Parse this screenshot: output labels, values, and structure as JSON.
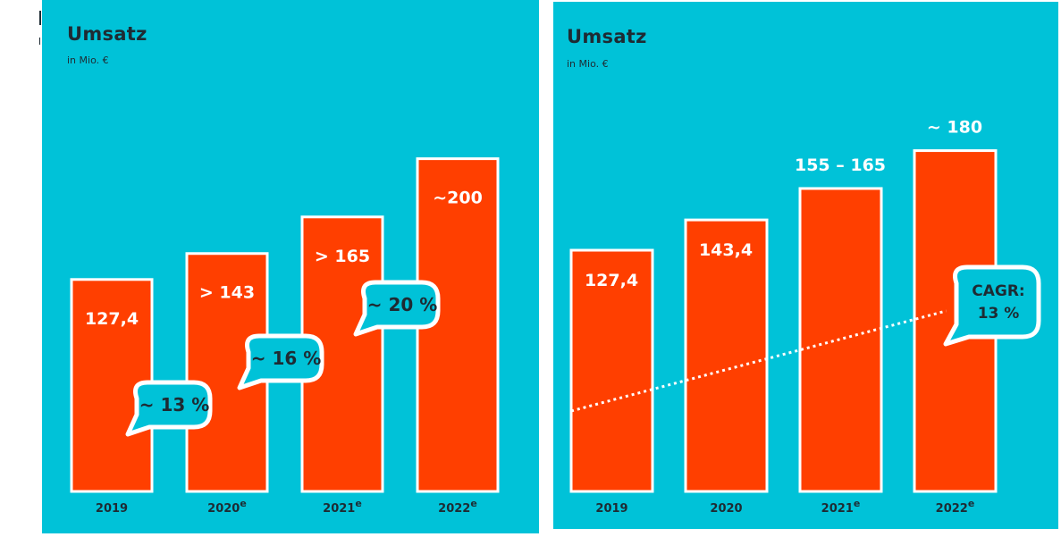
{
  "colors": {
    "background": "#00c2d8",
    "bar": "#ff3f00",
    "text": "#1e2b33",
    "value_text": "#ffffff"
  },
  "chart_data": [
    {
      "type": "bar",
      "title": "Umsatz",
      "subtitle": "in Mio. €",
      "categories": [
        "2019",
        "2020",
        "2021",
        "2022"
      ],
      "category_superscripts": [
        "",
        "e",
        "e",
        "e"
      ],
      "values": [
        127.4,
        143,
        165,
        200
      ],
      "value_labels": [
        "127,4",
        "> 143",
        "> 165",
        "~200"
      ],
      "growth_bubbles": [
        {
          "label": "~ 13 %"
        },
        {
          "label": "~ 16 %"
        },
        {
          "label": "~ 20 %"
        }
      ],
      "ylim": [
        0,
        210
      ]
    },
    {
      "type": "bar",
      "title": "Umsatz",
      "subtitle": "in Mio. €",
      "categories": [
        "2019",
        "2020",
        "2021",
        "2022"
      ],
      "category_superscripts": [
        "",
        "",
        "e",
        "e"
      ],
      "values": [
        127.4,
        143.4,
        160,
        180
      ],
      "value_labels": [
        "127,4",
        "143,4",
        "155 – 165",
        "~ 180"
      ],
      "trend_line": "dotted",
      "cagr_bubble": {
        "line1": "CAGR:",
        "line2": "13 %"
      },
      "ylim": [
        0,
        210
      ]
    }
  ]
}
